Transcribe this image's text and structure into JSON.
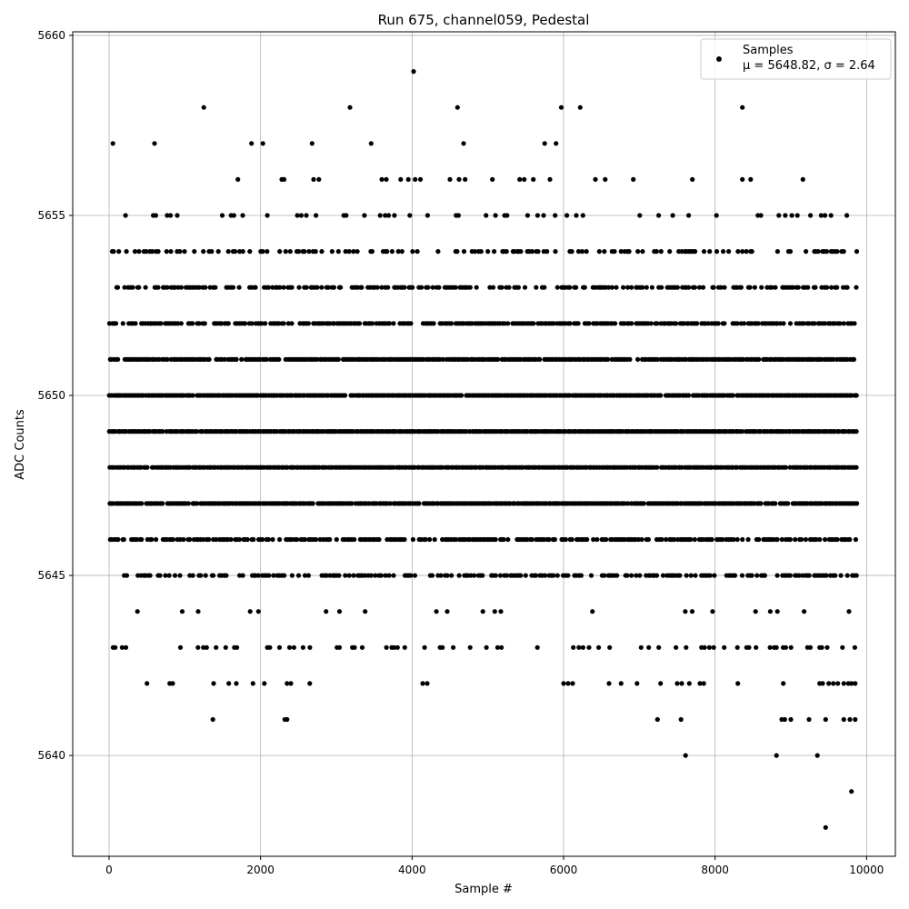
{
  "chart_data": {
    "type": "scatter",
    "title": "Run 675, channel059, Pedestal",
    "xlabel": "Sample #",
    "ylabel": "ADC Counts",
    "xlim": [
      -480,
      10380
    ],
    "ylim": [
      5637.2,
      5660.1
    ],
    "xticks": [
      0,
      2000,
      4000,
      6000,
      8000,
      10000
    ],
    "yticks": [
      5640,
      5645,
      5650,
      5655,
      5660
    ],
    "grid": true,
    "legend": {
      "position": "top-right",
      "label": "Samples",
      "stats_prefix": "μ = ",
      "mean": "5648.82",
      "sigma_prefix": ", σ = ",
      "sigma": "2.64"
    },
    "marker_color": "#000000",
    "n_samples": 9880,
    "dense_levels": [
      5645,
      5646,
      5647,
      5648,
      5649,
      5650,
      5651,
      5652,
      5653,
      5654
    ],
    "outliers": [
      {
        "x": 50,
        "y": 5657
      },
      {
        "x": 600,
        "y": 5657
      },
      {
        "x": 1250,
        "y": 5658
      },
      {
        "x": 1880,
        "y": 5657
      },
      {
        "x": 2030,
        "y": 5657
      },
      {
        "x": 2680,
        "y": 5657
      },
      {
        "x": 3180,
        "y": 5658
      },
      {
        "x": 3460,
        "y": 5657
      },
      {
        "x": 4020,
        "y": 5659
      },
      {
        "x": 4600,
        "y": 5658
      },
      {
        "x": 4680,
        "y": 5657
      },
      {
        "x": 5750,
        "y": 5657
      },
      {
        "x": 5900,
        "y": 5657
      },
      {
        "x": 5970,
        "y": 5658
      },
      {
        "x": 6220,
        "y": 5658
      },
      {
        "x": 8360,
        "y": 5658
      },
      {
        "x": 1700,
        "y": 5656
      },
      {
        "x": 2280,
        "y": 5656
      },
      {
        "x": 2310,
        "y": 5656
      },
      {
        "x": 2700,
        "y": 5656
      },
      {
        "x": 2770,
        "y": 5656
      },
      {
        "x": 3600,
        "y": 5656
      },
      {
        "x": 3660,
        "y": 5656
      },
      {
        "x": 3850,
        "y": 5656
      },
      {
        "x": 3950,
        "y": 5656
      },
      {
        "x": 4040,
        "y": 5656
      },
      {
        "x": 4110,
        "y": 5656
      },
      {
        "x": 4500,
        "y": 5656
      },
      {
        "x": 4620,
        "y": 5656
      },
      {
        "x": 4700,
        "y": 5656
      },
      {
        "x": 5060,
        "y": 5656
      },
      {
        "x": 5420,
        "y": 5656
      },
      {
        "x": 5480,
        "y": 5656
      },
      {
        "x": 5600,
        "y": 5656
      },
      {
        "x": 5820,
        "y": 5656
      },
      {
        "x": 6420,
        "y": 5656
      },
      {
        "x": 6550,
        "y": 5656
      },
      {
        "x": 6920,
        "y": 5656
      },
      {
        "x": 7700,
        "y": 5656
      },
      {
        "x": 8360,
        "y": 5656
      },
      {
        "x": 8470,
        "y": 5656
      },
      {
        "x": 9160,
        "y": 5656
      },
      {
        "x": 500,
        "y": 5642
      },
      {
        "x": 800,
        "y": 5642
      },
      {
        "x": 840,
        "y": 5642
      },
      {
        "x": 1380,
        "y": 5642
      },
      {
        "x": 1580,
        "y": 5642
      },
      {
        "x": 1680,
        "y": 5642
      },
      {
        "x": 1900,
        "y": 5642
      },
      {
        "x": 2050,
        "y": 5642
      },
      {
        "x": 2350,
        "y": 5642
      },
      {
        "x": 2400,
        "y": 5642
      },
      {
        "x": 2650,
        "y": 5642
      },
      {
        "x": 4140,
        "y": 5642
      },
      {
        "x": 4200,
        "y": 5642
      },
      {
        "x": 6000,
        "y": 5642
      },
      {
        "x": 6060,
        "y": 5642
      },
      {
        "x": 6120,
        "y": 5642
      },
      {
        "x": 6600,
        "y": 5642
      },
      {
        "x": 6760,
        "y": 5642
      },
      {
        "x": 6970,
        "y": 5642
      },
      {
        "x": 7280,
        "y": 5642
      },
      {
        "x": 7500,
        "y": 5642
      },
      {
        "x": 7560,
        "y": 5642
      },
      {
        "x": 7660,
        "y": 5642
      },
      {
        "x": 7800,
        "y": 5642
      },
      {
        "x": 7850,
        "y": 5642
      },
      {
        "x": 8300,
        "y": 5642
      },
      {
        "x": 8900,
        "y": 5642
      },
      {
        "x": 9380,
        "y": 5642
      },
      {
        "x": 9420,
        "y": 5642
      },
      {
        "x": 9500,
        "y": 5642
      },
      {
        "x": 9560,
        "y": 5642
      },
      {
        "x": 9620,
        "y": 5642
      },
      {
        "x": 9700,
        "y": 5642
      },
      {
        "x": 9760,
        "y": 5642
      },
      {
        "x": 9800,
        "y": 5642
      },
      {
        "x": 9850,
        "y": 5642
      },
      {
        "x": 1370,
        "y": 5641
      },
      {
        "x": 2320,
        "y": 5641
      },
      {
        "x": 2350,
        "y": 5641
      },
      {
        "x": 7240,
        "y": 5641
      },
      {
        "x": 7550,
        "y": 5641
      },
      {
        "x": 8880,
        "y": 5641
      },
      {
        "x": 8920,
        "y": 5641
      },
      {
        "x": 9000,
        "y": 5641
      },
      {
        "x": 9240,
        "y": 5641
      },
      {
        "x": 9460,
        "y": 5641
      },
      {
        "x": 9700,
        "y": 5641
      },
      {
        "x": 9780,
        "y": 5641
      },
      {
        "x": 9850,
        "y": 5641
      },
      {
        "x": 7610,
        "y": 5640
      },
      {
        "x": 8810,
        "y": 5640
      },
      {
        "x": 9350,
        "y": 5640
      },
      {
        "x": 9800,
        "y": 5639
      },
      {
        "x": 9460,
        "y": 5638
      }
    ]
  }
}
